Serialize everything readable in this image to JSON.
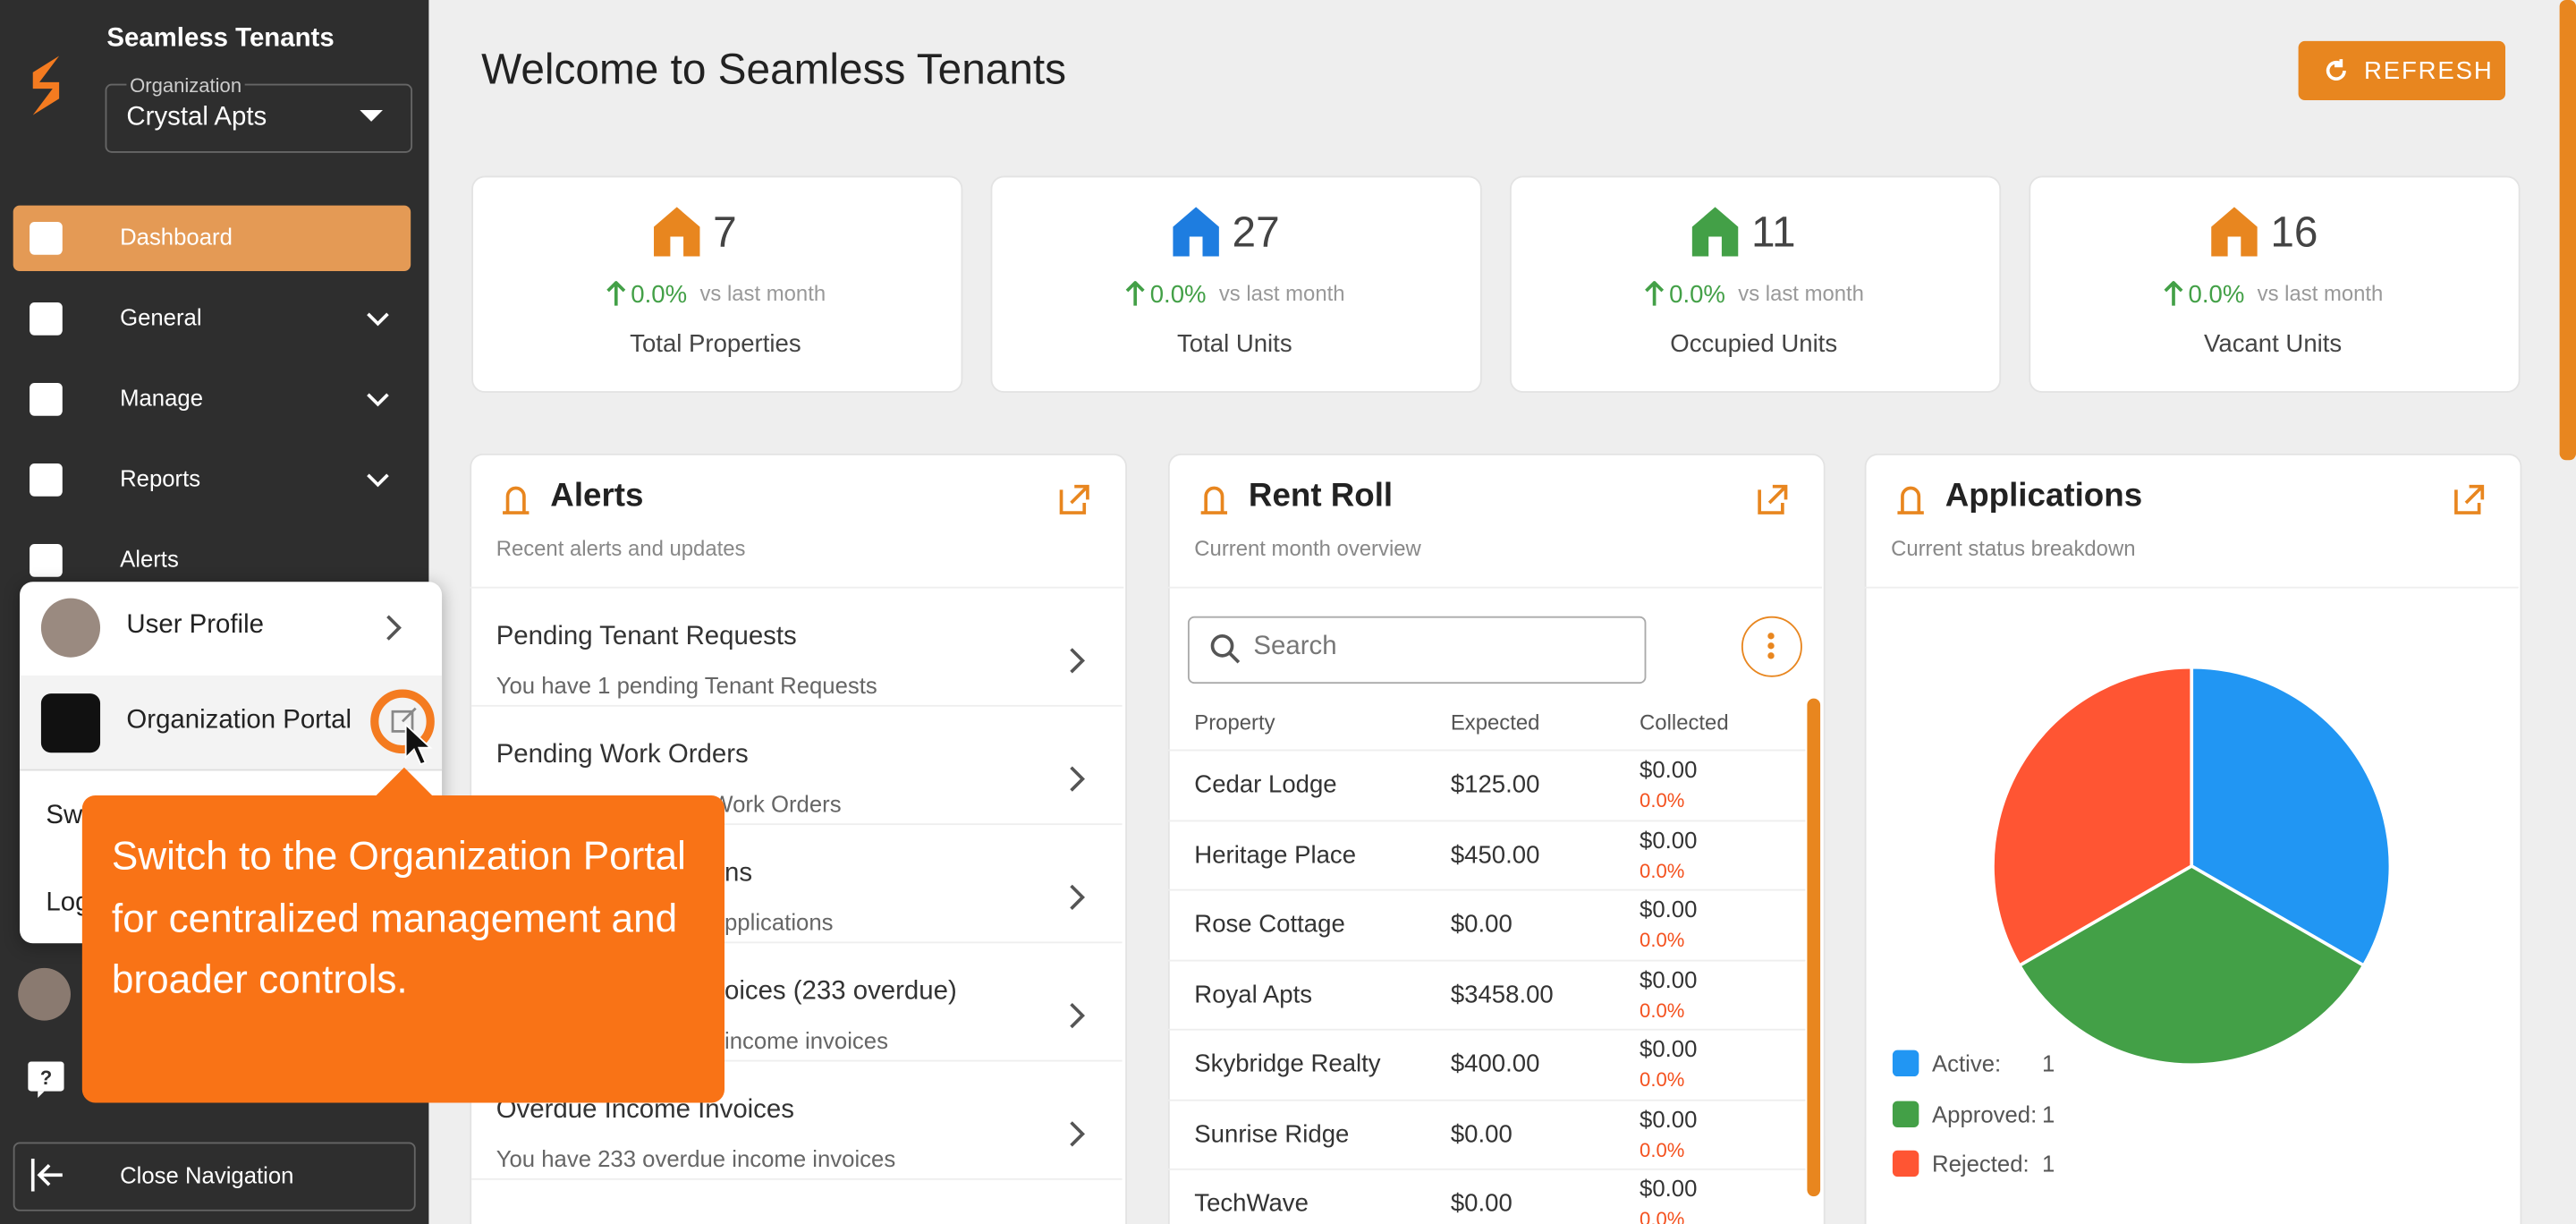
{
  "sidebar": {
    "brand": "Seamless Tenants",
    "org_label": "Organization",
    "org_value": "Crystal Apts",
    "nav": [
      "Dashboard",
      "General",
      "Manage",
      "Reports",
      "Alerts"
    ],
    "close": "Close Navigation"
  },
  "menu": {
    "items": [
      "User Profile",
      "Organization Portal",
      "Sw",
      "Log"
    ]
  },
  "tooltip": "Switch to the Organization Portal for centralized management and broader controls.",
  "header": {
    "title": "Welcome to Seamless Tenants",
    "refresh": "REFRESH"
  },
  "stats": [
    {
      "value": 7,
      "change": "0.0%",
      "vs": "vs last month",
      "label": "Total Properties"
    },
    {
      "value": 27,
      "change": "0.0%",
      "vs": "vs last month",
      "label": "Total Units"
    },
    {
      "value": 11,
      "change": "0.0%",
      "vs": "vs last month",
      "label": "Occupied Units"
    },
    {
      "value": 16,
      "change": "0.0%",
      "vs": "vs last month",
      "label": "Vacant Units"
    }
  ],
  "alerts": {
    "title": "Alerts",
    "subtitle": "Recent alerts and updates",
    "items": [
      {
        "title": "Pending Tenant Requests",
        "desc": "You have 1 pending Tenant Requests"
      },
      {
        "title": "Pending Work Orders",
        "desc": "Work Orders"
      },
      {
        "title": "ns",
        "desc": "pplications"
      },
      {
        "title": "oices (233 overdue)",
        "desc": "income invoices"
      },
      {
        "title": "Overdue Income Invoices",
        "desc": "You have 233 overdue income invoices"
      }
    ]
  },
  "rent_roll": {
    "title": "Rent Roll",
    "subtitle": "Current month overview",
    "search": "Search",
    "columns": [
      "Property",
      "Expected",
      "Collected"
    ],
    "rows": [
      [
        "Cedar Lodge",
        "$125.00",
        "$0.00",
        "0.0%"
      ],
      [
        "Heritage Place",
        "$450.00",
        "$0.00",
        "0.0%"
      ],
      [
        "Rose Cottage",
        "$0.00",
        "$0.00",
        "0.0%"
      ],
      [
        "Royal Apts",
        "$3458.00",
        "$0.00",
        "0.0%"
      ],
      [
        "Skybridge Realty",
        "$400.00",
        "$0.00",
        "0.0%"
      ],
      [
        "Sunrise Ridge",
        "$0.00",
        "$0.00",
        "0.0%"
      ],
      [
        "TechWave",
        "$0.00",
        "$0.00",
        "0.0%"
      ]
    ]
  },
  "applications": {
    "title": "Applications",
    "subtitle": "Current status breakdown",
    "chart": {
      "type": "pie",
      "labels": [
        "Active:",
        "Approved:",
        "Rejected:"
      ],
      "values": [
        1,
        1,
        1
      ],
      "colors": [
        "#2196f3",
        "#43a047",
        "#ff5533"
      ]
    }
  }
}
